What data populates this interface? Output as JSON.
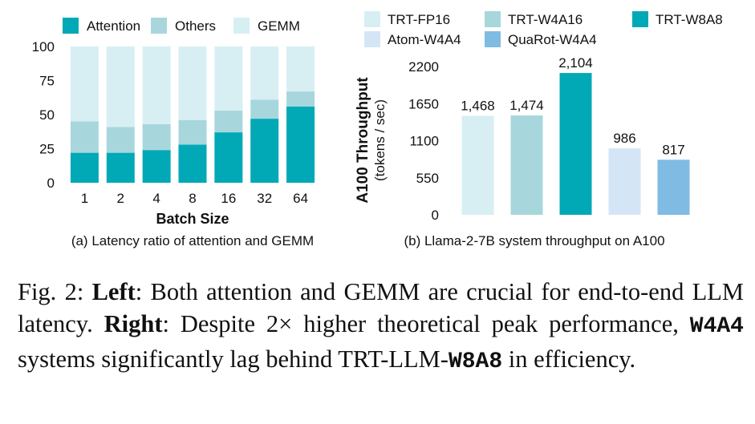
{
  "chart_data": [
    {
      "type": "bar",
      "stacked": true,
      "categories": [
        "1",
        "2",
        "4",
        "8",
        "16",
        "32",
        "64"
      ],
      "series": [
        {
          "name": "Attention",
          "color": "#00a9b5",
          "values": [
            22,
            22,
            24,
            28,
            37,
            47,
            56
          ]
        },
        {
          "name": "Others",
          "color": "#a7d7dc",
          "values": [
            23,
            19,
            19,
            18,
            16,
            14,
            11
          ]
        },
        {
          "name": "GEMM",
          "color": "#d7eff3",
          "values": [
            55,
            59,
            57,
            54,
            47,
            39,
            33
          ]
        }
      ],
      "xlabel": "Batch Size",
      "ylabel": "",
      "ylim": [
        0,
        100
      ],
      "yticks": [
        "0",
        "25",
        "50",
        "75",
        "100"
      ],
      "legend": "top",
      "grid": false,
      "subcaption": "(a) Latency ratio of attention and GEMM"
    },
    {
      "type": "bar",
      "categories": [
        "TRT-FP16",
        "TRT-W4A16",
        "TRT-W8A8",
        "Atom-W4A4",
        "QuaRot-W4A4"
      ],
      "values": [
        1468,
        1474,
        2104,
        986,
        817
      ],
      "value_labels": [
        "1,468",
        "1,474",
        "2,104",
        "986",
        "817"
      ],
      "colors": [
        "#d7eff3",
        "#a7d7dc",
        "#00a9b5",
        "#d4e6f6",
        "#7fbbe2"
      ],
      "ylabel": "A100 Throughput",
      "ylabel2": "(tokens / sec)",
      "ylim": [
        0,
        2200
      ],
      "yticks": [
        "0",
        "550",
        "1100",
        "1650",
        "2200"
      ],
      "legend": "top",
      "grid": false,
      "subcaption": "(b) Llama-2-7B system throughput on A100"
    }
  ],
  "caption": {
    "prefix": "Fig. 2: ",
    "left_label": "Left",
    "left_text": ": Both attention and GEMM are crucial for end-to-end LLM latency. ",
    "right_label": "Right",
    "right_text1": ": Despite 2× higher theoretical peak performance, ",
    "code1": "W4A4",
    "right_text2": " systems significantly lag behind TRT-LLM-",
    "code2": "W8A8",
    "right_text3": " in efficiency."
  }
}
